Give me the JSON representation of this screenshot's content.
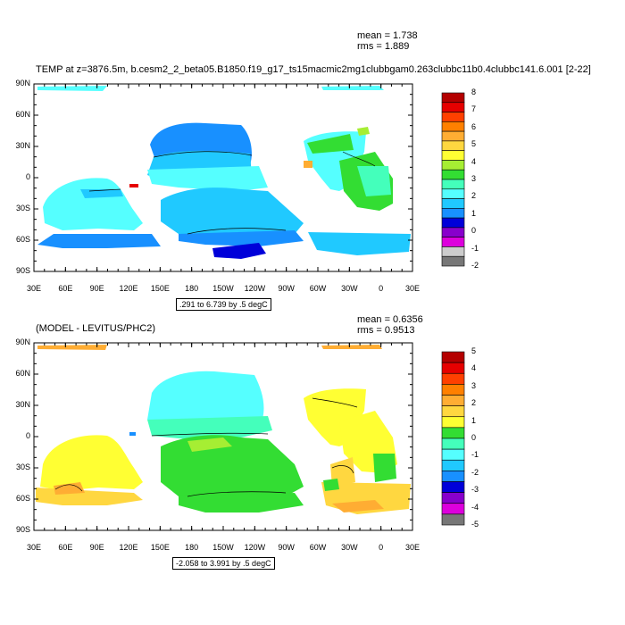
{
  "panels": [
    {
      "title": "TEMP at z=3876.5m, b.cesm2_2_beta05.B1850.f19_g17_ts15macmic2mg1clubbgam0.263clubbc11b0.4clubbc141.6.001 [2-22]",
      "mean_text": "mean = 1.738",
      "rms_text": "rms = 1.889",
      "range_text": ".291 to 6.739 by .5 degC",
      "colorbar_labels": [
        "8",
        "7",
        "6",
        "5",
        "4",
        "3",
        "2",
        "1",
        "0",
        "-1",
        "-2"
      ]
    },
    {
      "title": "(MODEL - LEVITUS/PHC2)",
      "mean_text": "mean = 0.6356",
      "rms_text": "rms = 0.9513",
      "range_text": "-2.058 to 3.991 by .5 degC",
      "colorbar_labels": [
        "5",
        "4",
        "3",
        "2",
        "1",
        "0",
        "-1",
        "-2",
        "-3",
        "-4",
        "-5"
      ]
    }
  ],
  "lon_labels": [
    "30E",
    "60E",
    "90E",
    "120E",
    "150E",
    "180",
    "150W",
    "120W",
    "90W",
    "60W",
    "30W",
    "0",
    "30E"
  ],
  "lat_labels": [
    "90N",
    "60N",
    "30N",
    "0",
    "30S",
    "60S",
    "90S"
  ],
  "colors": {
    "cb1": [
      "#b40000",
      "#e60000",
      "#ff4000",
      "#ff8000",
      "#ffad33",
      "#ffd740",
      "#ffff33",
      "#a6ee33",
      "#33dd33",
      "#44ffbb",
      "#55ffff",
      "#20c9ff",
      "#1890ff",
      "#0000d9",
      "#8800cc",
      "#dd00dd",
      "#cccccc",
      "#777777"
    ],
    "cb2": [
      "#b40000",
      "#e60000",
      "#ff4000",
      "#ff8000",
      "#ffad33",
      "#ffd740",
      "#ffff33",
      "#33dd33",
      "#44ffbb",
      "#55ffff",
      "#20c9ff",
      "#1890ff",
      "#0000d9",
      "#8800cc",
      "#dd00dd",
      "#777777"
    ]
  }
}
